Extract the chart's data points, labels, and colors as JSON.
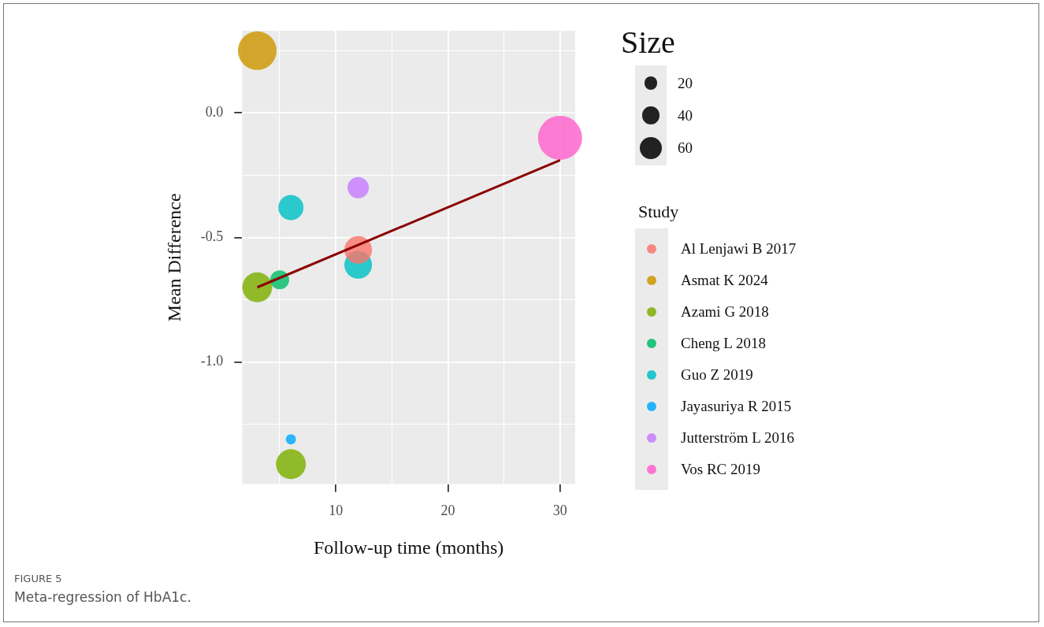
{
  "chart_data": {
    "type": "bubble",
    "xlabel": "Follow-up time (months)",
    "ylabel": "Mean Difference",
    "legend_title": "Study",
    "xlim": [
      1.65,
      31.35
    ],
    "xticks": [
      {
        "value": 5,
        "label": null
      },
      10,
      {
        "value": 15,
        "label": null
      },
      20,
      {
        "value": 25,
        "label": null
      },
      30
    ],
    "ylim": [
      -1.49,
      0.33
    ],
    "yticks": [
      {
        "value": -1.25,
        "label": null
      },
      {
        "value": -1.0,
        "label": "-1.0"
      },
      {
        "value": -0.75,
        "label": null
      },
      {
        "value": -0.5,
        "label": "-0.5"
      },
      {
        "value": -0.25,
        "label": null
      },
      {
        "value": 0,
        "label": "0.0"
      },
      {
        "value": 0.25,
        "label": null
      }
    ],
    "grid": true,
    "legend": "right",
    "size_legend": [
      20,
      40,
      60
    ],
    "series": [
      {
        "name": "Al Lenjawi B 2017",
        "color": "#f8766d",
        "x": [
          12
        ],
        "values": [
          -0.55
        ],
        "sizes": [
          94
        ]
      },
      {
        "name": "Asmat K 2024",
        "color": "#cd9600",
        "x": [
          3
        ],
        "values": [
          0.25
        ],
        "sizes": [
          184
        ]
      },
      {
        "name": "Azami G 2018",
        "color": "#7cae00",
        "x": [
          3,
          6
        ],
        "values": [
          -0.7,
          -1.41
        ],
        "sizes": [
          110,
          110
        ]
      },
      {
        "name": "Cheng L 2018",
        "color": "#00be67",
        "x": [
          5
        ],
        "values": [
          -0.67
        ],
        "sizes": [
          44
        ]
      },
      {
        "name": "Guo Z 2019",
        "color": "#00bfc4",
        "x": [
          6,
          12
        ],
        "values": [
          -0.38,
          -0.61
        ],
        "sizes": [
          78,
          94
        ]
      },
      {
        "name": "Jayasuriya R 2015",
        "color": "#00a9ff",
        "x": [
          6
        ],
        "values": [
          -1.31
        ],
        "sizes": [
          13
        ]
      },
      {
        "name": "Jutterström L 2016",
        "color": "#c77cff",
        "x": [
          12
        ],
        "values": [
          -0.3
        ],
        "sizes": [
          56
        ]
      },
      {
        "name": "Vos RC 2019",
        "color": "#ff61cc",
        "x": [
          30
        ],
        "values": [
          -0.1
        ],
        "sizes": [
          240
        ]
      },
      {
        "type": "line",
        "color": "#8b0000",
        "x": [
          3,
          30
        ],
        "values": [
          -0.7,
          -0.19
        ]
      }
    ],
    "annotations": [
      "Size",
      "FIGURE 5",
      "Meta-regression of HbA1c."
    ]
  }
}
